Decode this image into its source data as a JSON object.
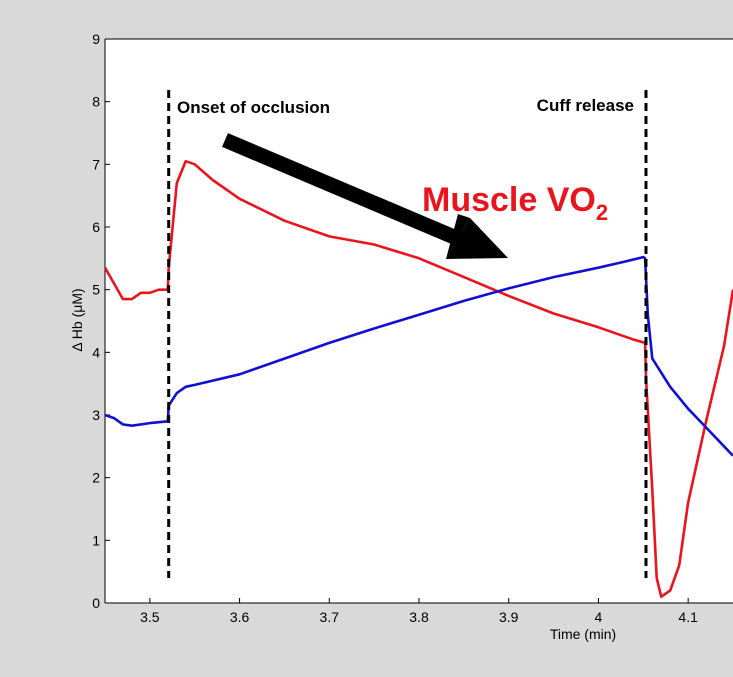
{
  "chart_data": {
    "type": "line",
    "xlabel": "Time (min)",
    "ylabel": "Δ Hb (μM)",
    "xlim": [
      3.45,
      4.15
    ],
    "ylim": [
      0,
      9
    ],
    "x_ticks": [
      "3.5",
      "3.6",
      "3.7",
      "3.8",
      "3.9",
      "4",
      "4.1"
    ],
    "y_ticks": [
      "0",
      "1",
      "2",
      "3",
      "4",
      "5",
      "6",
      "7",
      "8",
      "9"
    ],
    "grid": false,
    "colors": {
      "red_series": "#e8141e",
      "blue_series": "#1010d0",
      "background": "#d9d9d9",
      "plot_bg": "#ffffff"
    },
    "series": [
      {
        "color": "#e8141e",
        "x": [
          3.45,
          3.46,
          3.47,
          3.48,
          3.49,
          3.5,
          3.51,
          3.52,
          3.521,
          3.53,
          3.54,
          3.55,
          3.57,
          3.6,
          3.65,
          3.7,
          3.75,
          3.8,
          3.85,
          3.9,
          3.95,
          4.0,
          4.04,
          4.052,
          4.053,
          4.06,
          4.065,
          4.07,
          4.08,
          4.09,
          4.1,
          4.12,
          4.14,
          4.15
        ],
        "y": [
          5.35,
          5.1,
          4.85,
          4.85,
          4.95,
          4.95,
          5.0,
          5.0,
          5.35,
          6.7,
          7.05,
          7.0,
          6.75,
          6.45,
          6.1,
          5.85,
          5.72,
          5.5,
          5.2,
          4.9,
          4.62,
          4.4,
          4.2,
          4.15,
          3.6,
          1.8,
          0.4,
          0.1,
          0.2,
          0.6,
          1.6,
          2.9,
          4.1,
          5.0
        ]
      },
      {
        "color": "#1010d0",
        "x": [
          3.45,
          3.46,
          3.47,
          3.48,
          3.5,
          3.52,
          3.521,
          3.53,
          3.54,
          3.55,
          3.6,
          3.65,
          3.7,
          3.75,
          3.8,
          3.85,
          3.9,
          3.95,
          4.0,
          4.03,
          4.05,
          4.052,
          4.055,
          4.06,
          4.08,
          4.1,
          4.12,
          4.14,
          4.15
        ],
        "y": [
          3.0,
          2.95,
          2.85,
          2.83,
          2.87,
          2.9,
          3.15,
          3.35,
          3.45,
          3.48,
          3.65,
          3.9,
          4.15,
          4.38,
          4.6,
          4.82,
          5.02,
          5.2,
          5.35,
          5.45,
          5.52,
          5.5,
          4.6,
          3.9,
          3.45,
          3.1,
          2.8,
          2.5,
          2.35
        ]
      }
    ],
    "vlines": [
      3.521,
      4.053
    ],
    "annotations": {
      "onset": "Onset of occlusion",
      "release": "Cuff release",
      "muscle_main": "Muscle VO",
      "muscle_sub": "2"
    }
  }
}
